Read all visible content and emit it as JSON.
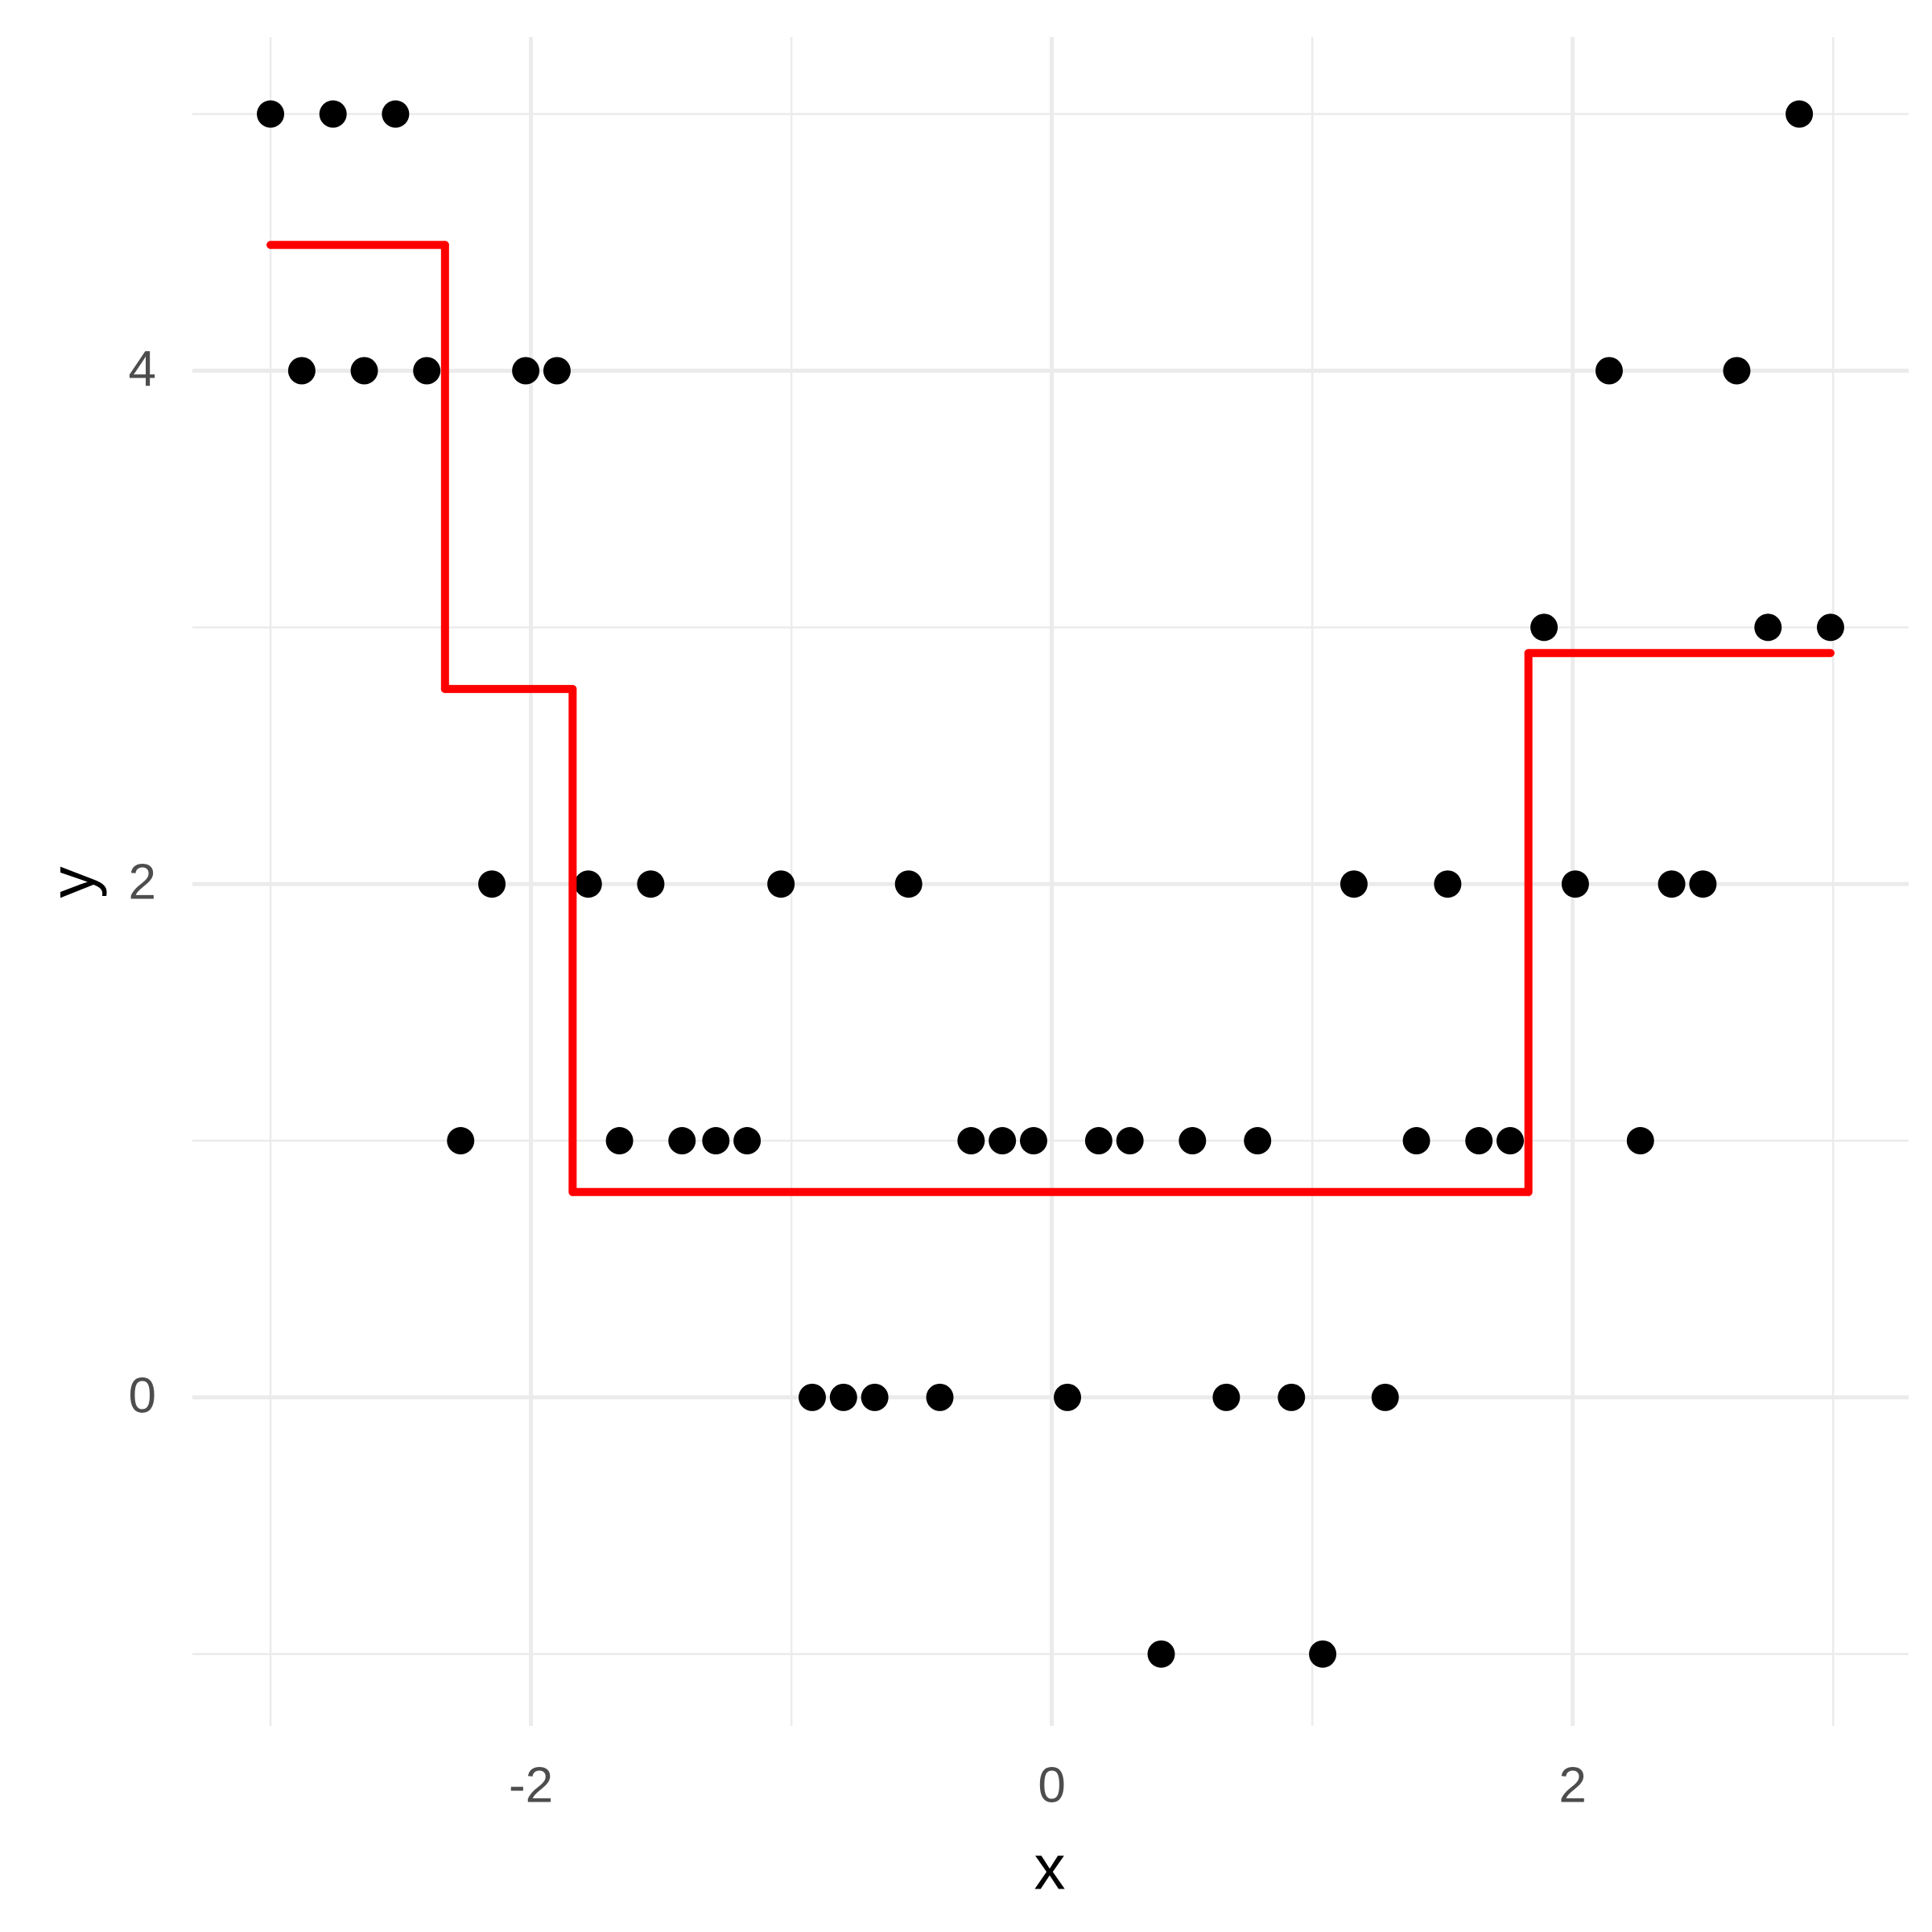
{
  "chart_data": {
    "type": "scatter",
    "x_label": "x",
    "y_label": "y",
    "xlim": [
      -3.3,
      3.29
    ],
    "ylim": [
      -1.28,
      5.3
    ],
    "xticks": [
      -2,
      0,
      2
    ],
    "yticks": [
      0,
      2,
      4
    ],
    "xminorticks": [
      -3,
      -1,
      1,
      3
    ],
    "yminorticks": [
      -1,
      1,
      3,
      5
    ],
    "grid": true,
    "series": [
      {
        "type": "scatter",
        "color": "#000000",
        "x": [
          -3.0,
          -2.76,
          -2.52,
          2.87,
          -2.88,
          -2.64,
          -2.4,
          -2.02,
          -1.9,
          2.14,
          2.63,
          1.89,
          2.75,
          2.99,
          -2.15,
          -1.78,
          -1.54,
          -1.04,
          -0.55,
          1.16,
          1.52,
          2.01,
          2.38,
          2.5,
          -2.27,
          -1.66,
          -1.42,
          -1.29,
          -1.17,
          -0.31,
          -0.19,
          -0.07,
          0.18,
          0.3,
          0.54,
          0.79,
          1.4,
          1.64,
          1.76,
          2.26,
          -0.92,
          -0.8,
          -0.68,
          -0.43,
          0.06,
          0.67,
          0.92,
          1.28,
          0.42,
          1.04
        ],
        "values": [
          5,
          5,
          5,
          5,
          4,
          4,
          4,
          4,
          4,
          4,
          4,
          3,
          3,
          3,
          2,
          2,
          2,
          2,
          2,
          2,
          2,
          2,
          2,
          2,
          1,
          1,
          1,
          1,
          1,
          1,
          1,
          1,
          1,
          1,
          1,
          1,
          1,
          1,
          1,
          1,
          0,
          0,
          0,
          0,
          0,
          0,
          0,
          0,
          -1,
          -1
        ]
      },
      {
        "type": "step",
        "color": "#ff0000",
        "bins": [
          -3.0,
          -2.33,
          -1.84,
          1.83,
          2.99
        ],
        "values": [
          4.49,
          2.76,
          0.8,
          2.9
        ]
      }
    ]
  }
}
